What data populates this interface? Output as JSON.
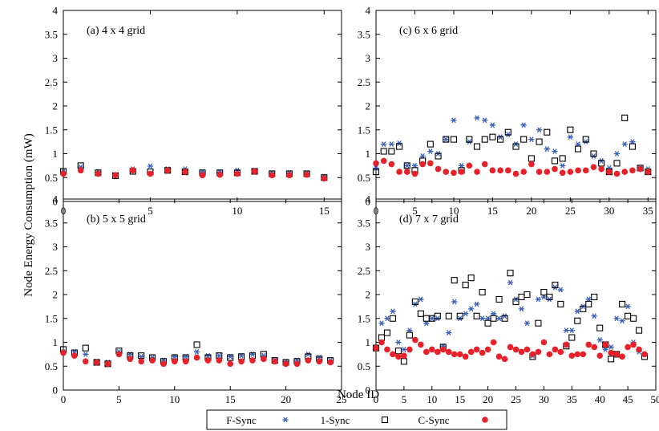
{
  "figure": {
    "ylabel": "Node Energy Consumption (mW)",
    "xlabel": "Node ID"
  },
  "legend": {
    "placement": "bottom-center",
    "entries": [
      {
        "name": "F-Sync",
        "marker": "asterisk",
        "color": "#3a5fb8"
      },
      {
        "name": "1-Sync",
        "marker": "open-square",
        "color": "#000000"
      },
      {
        "name": "C-Sync",
        "marker": "filled-circle",
        "color": "#e8202a"
      }
    ]
  },
  "chart_data": [
    {
      "type": "scatter",
      "title": "(a) 4 x 4 grid",
      "xlim": [
        0,
        16
      ],
      "ylim": [
        0,
        4
      ],
      "xticks": [
        "0",
        "5",
        "10",
        "15"
      ],
      "yticks": [
        "0",
        "0.5",
        "1",
        "1.5",
        "2",
        "2.5",
        "3",
        "3.5",
        "4"
      ],
      "x": [
        0,
        1,
        2,
        3,
        4,
        5,
        6,
        7,
        8,
        9,
        10,
        11,
        12,
        13,
        14,
        15
      ],
      "series": [
        {
          "name": "F-Sync",
          "values": [
            0.62,
            0.72,
            0.62,
            0.55,
            0.68,
            0.74,
            0.68,
            0.68,
            0.62,
            0.62,
            0.65,
            0.65,
            0.6,
            0.6,
            0.6,
            0.52
          ]
        },
        {
          "name": "1-Sync",
          "values": [
            0.63,
            0.75,
            0.6,
            0.54,
            0.63,
            0.62,
            0.65,
            0.62,
            0.6,
            0.6,
            0.6,
            0.63,
            0.58,
            0.58,
            0.58,
            0.5
          ]
        },
        {
          "name": "C-Sync",
          "values": [
            0.58,
            0.65,
            0.58,
            0.55,
            0.65,
            0.58,
            0.65,
            0.62,
            0.55,
            0.56,
            0.58,
            0.63,
            0.55,
            0.55,
            0.56,
            0.48
          ]
        }
      ]
    },
    {
      "type": "scatter",
      "title": "(c) 6 x 6 grid",
      "xlim": [
        0,
        36
      ],
      "ylim": [
        0,
        4
      ],
      "xticks": [
        "0",
        "5",
        "10",
        "15",
        "20",
        "25",
        "30",
        "35"
      ],
      "yticks": [
        "0",
        "0.5",
        "1",
        "1.5",
        "2",
        "2.5",
        "3",
        "3.5",
        "4"
      ],
      "x": [
        0,
        1,
        2,
        3,
        4,
        5,
        6,
        7,
        8,
        9,
        10,
        11,
        12,
        13,
        14,
        15,
        16,
        17,
        18,
        19,
        20,
        21,
        22,
        23,
        24,
        25,
        26,
        27,
        28,
        29,
        30,
        31,
        32,
        33,
        34,
        35
      ],
      "series": [
        {
          "name": "F-Sync",
          "values": [
            0.7,
            1.2,
            1.2,
            1.22,
            0.75,
            0.75,
            0.95,
            1.05,
            1.0,
            1.3,
            1.7,
            0.75,
            1.25,
            1.75,
            1.7,
            1.6,
            1.35,
            1.4,
            1.2,
            1.6,
            1.3,
            1.5,
            1.1,
            1.05,
            0.75,
            1.35,
            1.2,
            1.25,
            0.95,
            0.85,
            0.7,
            1.0,
            1.2,
            1.25,
            0.7,
            0.68
          ]
        },
        {
          "name": "1-Sync",
          "values": [
            0.62,
            1.05,
            1.05,
            1.15,
            0.75,
            0.65,
            0.85,
            1.2,
            0.95,
            1.3,
            1.3,
            0.65,
            1.3,
            1.15,
            1.3,
            1.35,
            1.3,
            1.45,
            1.15,
            1.3,
            0.9,
            1.25,
            1.45,
            0.85,
            0.9,
            1.5,
            1.1,
            1.3,
            1.0,
            0.8,
            0.62,
            0.8,
            1.75,
            1.15,
            0.7,
            0.62
          ]
        },
        {
          "name": "C-Sync",
          "values": [
            0.8,
            0.85,
            0.78,
            0.62,
            0.62,
            0.58,
            0.78,
            0.8,
            0.68,
            0.62,
            0.6,
            0.62,
            0.75,
            0.62,
            0.78,
            0.65,
            0.65,
            0.65,
            0.58,
            0.62,
            0.78,
            0.62,
            0.62,
            0.68,
            0.6,
            0.62,
            0.65,
            0.65,
            0.72,
            0.68,
            0.62,
            0.58,
            0.62,
            0.65,
            0.68,
            0.62
          ]
        }
      ]
    },
    {
      "type": "scatter",
      "title": "(b) 5 x 5 grid",
      "xlim": [
        0,
        25
      ],
      "ylim": [
        0,
        4
      ],
      "xticks": [
        "0",
        "5",
        "10",
        "15",
        "20",
        "25"
      ],
      "yticks": [
        "0",
        "0.5",
        "1",
        "1.5",
        "2",
        "2.5",
        "3",
        "3.5",
        "4"
      ],
      "x": [
        0,
        1,
        2,
        3,
        4,
        5,
        6,
        7,
        8,
        9,
        10,
        11,
        12,
        13,
        14,
        15,
        16,
        17,
        18,
        19,
        20,
        21,
        22,
        23,
        24
      ],
      "series": [
        {
          "name": "F-Sync",
          "values": [
            0.8,
            0.8,
            0.75,
            0.6,
            0.58,
            0.8,
            0.75,
            0.7,
            0.68,
            0.62,
            0.7,
            0.7,
            0.8,
            0.72,
            0.72,
            0.7,
            0.72,
            0.75,
            0.72,
            0.62,
            0.6,
            0.62,
            0.75,
            0.68,
            0.62
          ]
        },
        {
          "name": "1-Sync",
          "values": [
            0.85,
            0.78,
            0.88,
            0.58,
            0.55,
            0.82,
            0.72,
            0.72,
            0.68,
            0.6,
            0.68,
            0.68,
            0.95,
            0.68,
            0.72,
            0.68,
            0.7,
            0.72,
            0.75,
            0.62,
            0.58,
            0.6,
            0.7,
            0.65,
            0.62
          ]
        },
        {
          "name": "C-Sync",
          "values": [
            0.78,
            0.72,
            0.6,
            0.58,
            0.55,
            0.75,
            0.65,
            0.6,
            0.62,
            0.55,
            0.6,
            0.6,
            0.68,
            0.62,
            0.62,
            0.55,
            0.6,
            0.62,
            0.65,
            0.6,
            0.55,
            0.55,
            0.62,
            0.6,
            0.58
          ]
        }
      ]
    },
    {
      "type": "scatter",
      "title": "(d) 7 x 7 grid",
      "xlim": [
        0,
        50
      ],
      "ylim": [
        0,
        4
      ],
      "xticks": [
        "0",
        "5",
        "10",
        "15",
        "20",
        "25",
        "30",
        "35",
        "40",
        "45",
        "50"
      ],
      "yticks": [
        "0",
        "0.5",
        "1",
        "1.5",
        "2",
        "2.5",
        "3",
        "3.5",
        "4"
      ],
      "x": [
        0,
        1,
        2,
        3,
        4,
        5,
        6,
        7,
        8,
        9,
        10,
        11,
        12,
        13,
        14,
        15,
        16,
        17,
        18,
        19,
        20,
        21,
        22,
        23,
        24,
        25,
        26,
        27,
        28,
        29,
        30,
        31,
        32,
        33,
        34,
        35,
        36,
        37,
        38,
        39,
        40,
        41,
        42,
        43,
        44,
        45,
        46,
        47,
        48
      ],
      "series": [
        {
          "name": "F-Sync",
          "values": [
            0.9,
            1.4,
            1.5,
            1.65,
            1.0,
            0.85,
            1.25,
            1.8,
            1.9,
            1.4,
            1.5,
            1.5,
            0.92,
            1.2,
            1.85,
            1.5,
            1.6,
            1.7,
            1.8,
            1.5,
            1.5,
            1.6,
            1.5,
            1.55,
            2.25,
            1.9,
            1.7,
            1.4,
            0.72,
            1.9,
            1.95,
            1.9,
            2.15,
            2.1,
            1.25,
            1.25,
            1.65,
            1.75,
            1.9,
            1.55,
            1.05,
            0.85,
            0.9,
            1.5,
            1.45,
            1.75,
            1.0,
            0.8,
            0.75
          ]
        },
        {
          "name": "1-Sync",
          "values": [
            0.88,
            1.1,
            1.2,
            1.5,
            0.82,
            0.6,
            1.15,
            1.85,
            1.6,
            1.5,
            1.5,
            1.55,
            0.9,
            1.55,
            2.3,
            1.55,
            2.2,
            2.35,
            1.55,
            2.05,
            1.4,
            1.5,
            1.9,
            1.5,
            2.45,
            1.85,
            1.95,
            2.0,
            0.7,
            1.4,
            2.05,
            1.95,
            2.2,
            1.8,
            0.92,
            1.1,
            1.45,
            1.7,
            1.8,
            1.95,
            1.3,
            0.95,
            0.65,
            0.75,
            1.8,
            1.55,
            1.5,
            1.25,
            0.7
          ]
        },
        {
          "name": "C-Sync",
          "values": [
            0.88,
            1.0,
            0.85,
            0.75,
            0.7,
            0.72,
            0.85,
            1.05,
            0.95,
            0.8,
            0.85,
            0.8,
            0.85,
            0.8,
            0.75,
            0.75,
            0.7,
            0.8,
            0.85,
            0.78,
            0.85,
            1.0,
            0.7,
            0.65,
            0.9,
            0.85,
            0.8,
            0.85,
            0.75,
            0.8,
            1.0,
            0.75,
            0.85,
            0.8,
            0.95,
            0.72,
            0.75,
            0.75,
            0.95,
            0.9,
            0.72,
            0.95,
            0.78,
            0.75,
            0.7,
            0.9,
            0.95,
            0.85,
            0.75
          ]
        }
      ]
    }
  ]
}
